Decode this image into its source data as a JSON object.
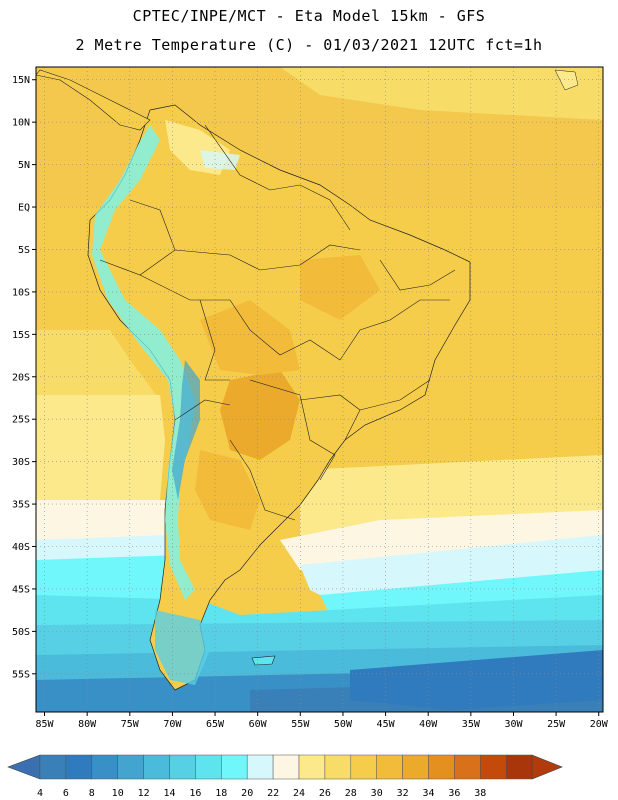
{
  "header": {
    "line1": "CPTEC/INPE/MCT -  Eta Model 15km - GFS",
    "line2": "2 Metre Temperature (C) - 01/03/2021 12UTC fct=1h"
  },
  "axes": {
    "lat_labels": [
      "15N",
      "10N",
      "5N",
      "EQ",
      "5S",
      "10S",
      "15S",
      "20S",
      "25S",
      "30S",
      "35S",
      "40S",
      "45S",
      "50S",
      "55S"
    ],
    "lon_labels": [
      "85W",
      "80W",
      "75W",
      "70W",
      "65W",
      "60W",
      "55W",
      "50W",
      "45W",
      "40W",
      "35W",
      "30W",
      "25W",
      "20W"
    ]
  },
  "colorbar": {
    "labels": [
      "4",
      "6",
      "8",
      "10",
      "12",
      "14",
      "16",
      "18",
      "20",
      "22",
      "24",
      "26",
      "28",
      "30",
      "32",
      "34",
      "36",
      "38"
    ],
    "colors": [
      "#3a80b8",
      "#2f7bbd",
      "#3890c6",
      "#42a4cf",
      "#4bbbdb",
      "#57d0e6",
      "#5ee4ef",
      "#6ff7fb",
      "#d6f7fb",
      "#fdf6e2",
      "#fbe98c",
      "#f8dc68",
      "#f6cd4a",
      "#f2bb3a",
      "#ecaa2c",
      "#e4901f",
      "#d9701a",
      "#c44a0c",
      "#a8360a"
    ],
    "under_color": "#3a6fb0",
    "over_color": "#b23a0c"
  }
}
